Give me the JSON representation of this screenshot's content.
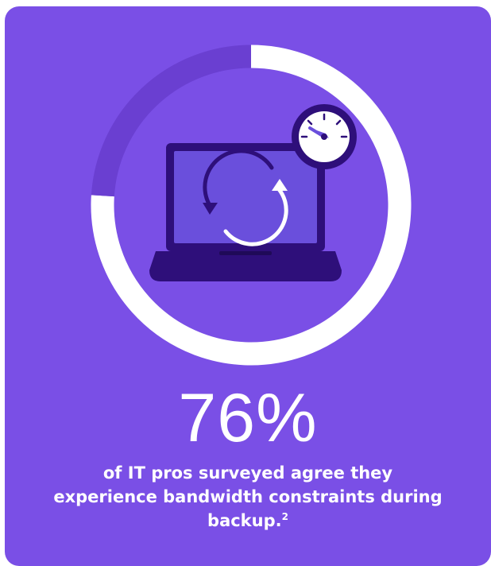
{
  "chart_data": {
    "type": "pie",
    "style": "donut",
    "values": [
      76,
      24
    ],
    "highlight_index": 0,
    "colors": {
      "filled": "#ffffff",
      "remainder": "#6a3fd1",
      "background": "#7a4fe6"
    }
  },
  "stat": {
    "value": "76%"
  },
  "caption": {
    "text": "of IT pros surveyed agree they experience bandwidth constraints during backup.",
    "footnote": "2"
  },
  "icons": {
    "main": "laptop-sync-icon",
    "badge": "speedometer-icon"
  },
  "colors": {
    "laptop_body": "#2e0f7a",
    "laptop_screen": "#6a4fdc",
    "gauge_face": "#ffffff"
  }
}
